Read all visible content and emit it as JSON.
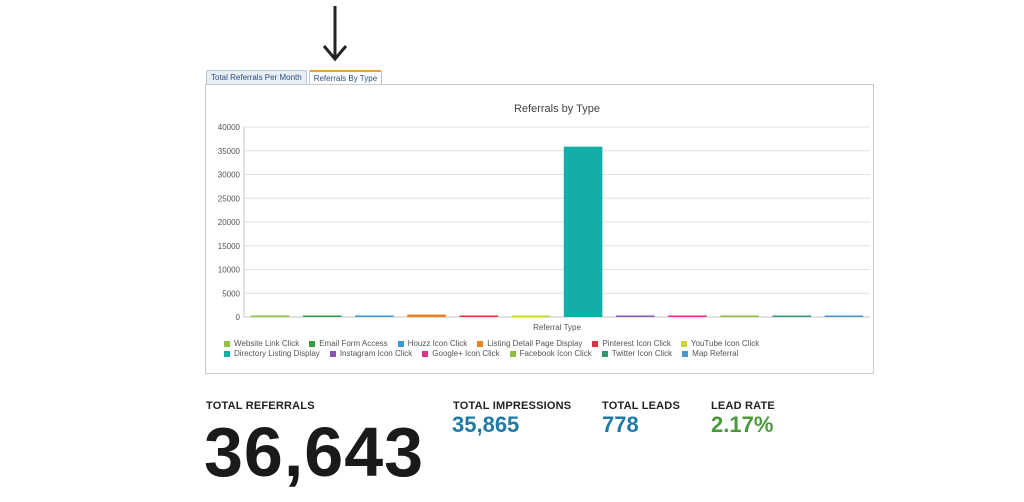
{
  "tabs": [
    {
      "label": "Total Referrals Per Month",
      "active": false
    },
    {
      "label": "Referrals By Type",
      "active": true
    }
  ],
  "chart_data": {
    "type": "bar",
    "title": "Referrals by Type",
    "xlabel": "Referral Type",
    "ylabel": "",
    "ylim": [
      0,
      40000
    ],
    "yticks": [
      0,
      5000,
      10000,
      15000,
      20000,
      25000,
      30000,
      35000,
      40000
    ],
    "grid": true,
    "legend_position": "bottom",
    "categories": [
      "Website Link Click",
      "Email Form Access",
      "Houzz Icon Click",
      "Listing Detail Page Display",
      "Pinterest Icon Click",
      "YouTube Icon Click",
      "Directory Listing Display",
      "Instagram Icon Click",
      "Google+ Icon Click",
      "Facebook Icon Click",
      "Twitter Icon Click",
      "Map Referral"
    ],
    "values": [
      150,
      50,
      20,
      520,
      20,
      5,
      35865,
      5,
      5,
      5,
      5,
      5
    ],
    "colors": [
      "#8dc63f",
      "#2e9e48",
      "#3a9bd5",
      "#f07f20",
      "#e0343c",
      "#c8d63a",
      "#13aea8",
      "#8a56b0",
      "#e4308c",
      "#8fbf40",
      "#2f9a6f",
      "#4d95cf"
    ]
  },
  "stats": {
    "total_referrals_label": "TOTAL REFERRALS",
    "total_referrals_value": "36,643",
    "total_impressions_label": "TOTAL IMPRESSIONS",
    "total_impressions_value": "35,865",
    "total_leads_label": "TOTAL LEADS",
    "total_leads_value": "778",
    "lead_rate_label": "LEAD RATE",
    "lead_rate_value": "2.17%",
    "colors": {
      "impressions": "#1f7aa6",
      "leads": "#1f7aa6",
      "lead_rate": "#4a9a3a"
    }
  }
}
